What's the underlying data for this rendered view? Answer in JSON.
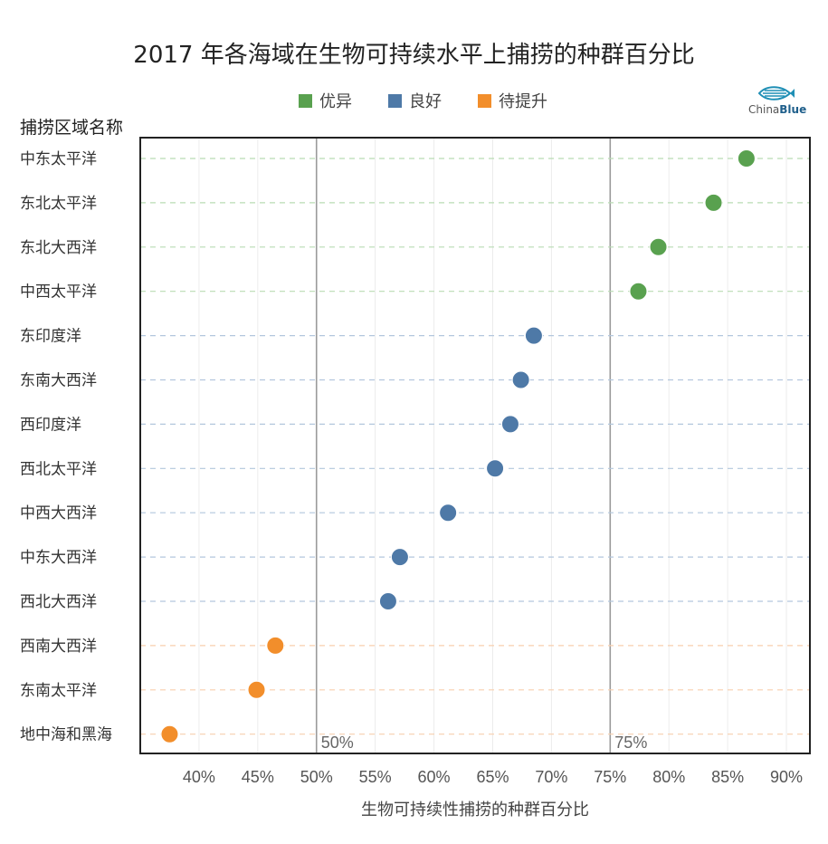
{
  "chart_data": {
    "type": "scatter",
    "title": "2017 年各海域在生物可持续水平上捕捞的种群百分比",
    "ylabel": "捕捞区域名称",
    "xlabel": "生物可持续性捕捞的种群百分比",
    "xlim": [
      35,
      92
    ],
    "x_ticks": [
      "40%",
      "45%",
      "50%",
      "55%",
      "60%",
      "65%",
      "70%",
      "75%",
      "80%",
      "85%",
      "90%"
    ],
    "x_tick_values": [
      40,
      45,
      50,
      55,
      60,
      65,
      70,
      75,
      80,
      85,
      90
    ],
    "reference_lines": [
      {
        "value": 50,
        "label": "50%"
      },
      {
        "value": 75,
        "label": "75%"
      }
    ],
    "legend": [
      {
        "name": "优异",
        "color": "#59a14f"
      },
      {
        "name": "良好",
        "color": "#4e79a7"
      },
      {
        "name": "待提升",
        "color": "#f28e2b"
      }
    ],
    "categories": [
      "中东太平洋",
      "东北太平洋",
      "东北大西洋",
      "中西太平洋",
      "东印度洋",
      "东南大西洋",
      "西印度洋",
      "西北太平洋",
      "中西大西洋",
      "中东大西洋",
      "西北大西洋",
      "西南大西洋",
      "东南太平洋",
      "地中海和黑海"
    ],
    "values": [
      86.6,
      83.8,
      79.1,
      77.4,
      68.5,
      67.4,
      66.5,
      65.2,
      61.2,
      57.1,
      56.1,
      46.5,
      44.9,
      37.5
    ],
    "groups": [
      "优异",
      "优异",
      "优异",
      "优异",
      "良好",
      "良好",
      "良好",
      "良好",
      "良好",
      "良好",
      "良好",
      "待提升",
      "待提升",
      "待提升"
    ]
  },
  "logo": {
    "text_a": "China",
    "text_b": "Blue"
  }
}
